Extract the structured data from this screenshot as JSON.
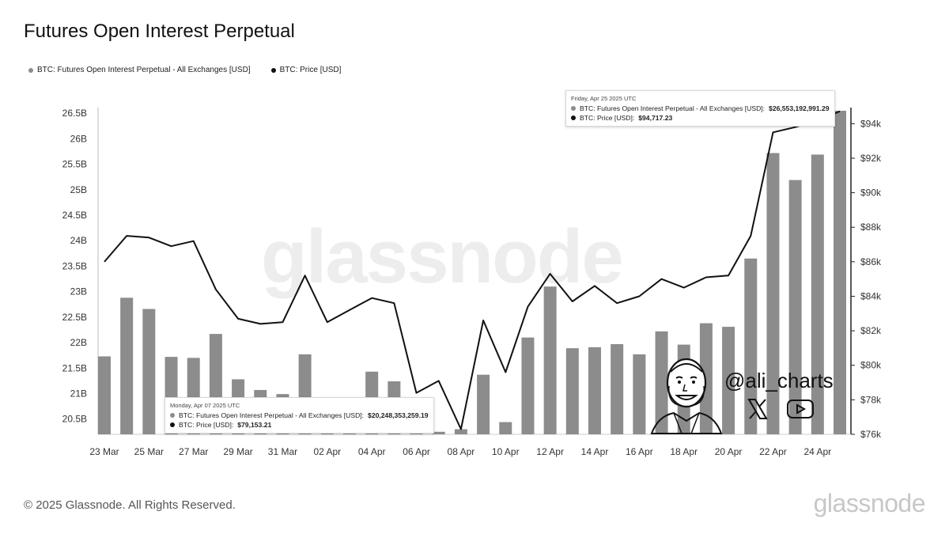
{
  "title": "Futures Open Interest Perpetual",
  "legend": [
    {
      "label": "BTC: Futures Open Interest Perpetual - All Exchanges [USD]",
      "color": "#8c8c8c"
    },
    {
      "label": "BTC: Price [USD]",
      "color": "#111111"
    }
  ],
  "tooltip_top": {
    "date": "Friday, Apr 25 2025 UTC",
    "oi_label": "BTC: Futures Open Interest Perpetual - All Exchanges [USD]:",
    "oi_value": "$26,553,192,991.29",
    "price_label": "BTC: Price [USD]:",
    "price_value": "$94,717.23"
  },
  "tooltip_bottom": {
    "date": "Monday, Apr 07 2025 UTC",
    "oi_label": "BTC: Futures Open Interest Perpetual - All Exchanges [USD]:",
    "oi_value": "$20,248,353,259.19",
    "price_label": "BTC: Price [USD]:",
    "price_value": "$79,153.21"
  },
  "watermark": "glassnode",
  "handle": "@ali_charts",
  "footer": "© 2025 Glassnode. All Rights Reserved.",
  "footer_logo": "glassnode",
  "chart_data": {
    "type": "bar",
    "x": [
      "23 Mar",
      "24 Mar",
      "25 Mar",
      "26 Mar",
      "27 Mar",
      "28 Mar",
      "29 Mar",
      "30 Mar",
      "31 Mar",
      "01 Apr",
      "02 Apr",
      "03 Apr",
      "04 Apr",
      "05 Apr",
      "06 Apr",
      "07 Apr",
      "08 Apr",
      "09 Apr",
      "10 Apr",
      "11 Apr",
      "12 Apr",
      "13 Apr",
      "14 Apr",
      "15 Apr",
      "16 Apr",
      "17 Apr",
      "18 Apr",
      "19 Apr",
      "20 Apr",
      "21 Apr",
      "22 Apr",
      "23 Apr",
      "24 Apr",
      "25 Apr"
    ],
    "x_tick_labels": [
      "23 Mar",
      "25 Mar",
      "27 Mar",
      "29 Mar",
      "31 Mar",
      "02 Apr",
      "04 Apr",
      "06 Apr",
      "08 Apr",
      "10 Apr",
      "12 Apr",
      "14 Apr",
      "16 Apr",
      "18 Apr",
      "20 Apr",
      "22 Apr",
      "24 Apr"
    ],
    "series": [
      {
        "name": "BTC: Futures Open Interest Perpetual - All Exchanges [USD]",
        "type": "bar",
        "axis": "left",
        "values": [
          21.73,
          22.88,
          22.66,
          21.72,
          21.7,
          22.17,
          21.28,
          21.07,
          20.99,
          21.77,
          20.55,
          20.55,
          21.43,
          21.24,
          20.55,
          20.25,
          20.3,
          21.37,
          20.44,
          22.1,
          23.1,
          21.89,
          21.91,
          21.97,
          21.77,
          22.22,
          21.96,
          22.38,
          22.31,
          23.65,
          25.72,
          25.19,
          25.69,
          26.55
        ]
      },
      {
        "name": "BTC: Price [USD]",
        "type": "line",
        "axis": "right",
        "values": [
          86000,
          87500,
          87400,
          86900,
          87200,
          84400,
          82700,
          82400,
          82500,
          85200,
          82500,
          83200,
          83900,
          83600,
          78400,
          79100,
          76300,
          82600,
          79600,
          83400,
          85300,
          83700,
          84600,
          83600,
          84000,
          85000,
          84500,
          85100,
          85200,
          87500,
          93500,
          93800,
          94200,
          94717
        ]
      }
    ],
    "y_left": {
      "ticks": [
        20.5,
        21,
        21.5,
        22,
        22.5,
        23,
        23.5,
        24,
        24.5,
        25,
        25.5,
        26,
        26.5
      ],
      "tick_labels": [
        "20.5B",
        "21B",
        "21.5B",
        "22B",
        "22.5B",
        "23B",
        "23.5B",
        "24B",
        "24.5B",
        "25B",
        "25.5B",
        "26B",
        "26.5B"
      ],
      "range": [
        20.2,
        26.55
      ]
    },
    "y_right": {
      "ticks": [
        76000,
        78000,
        80000,
        82000,
        84000,
        86000,
        88000,
        90000,
        92000,
        94000
      ],
      "tick_labels": [
        "$76k",
        "$78k",
        "$80k",
        "$82k",
        "$84k",
        "$86k",
        "$88k",
        "$90k",
        "$92k",
        "$94k"
      ],
      "range": [
        76000,
        94750
      ]
    },
    "legend": "top-left",
    "grid": false
  },
  "colors": {
    "bar": "#8c8c8c",
    "line": "#111111",
    "axis": "#222222"
  }
}
